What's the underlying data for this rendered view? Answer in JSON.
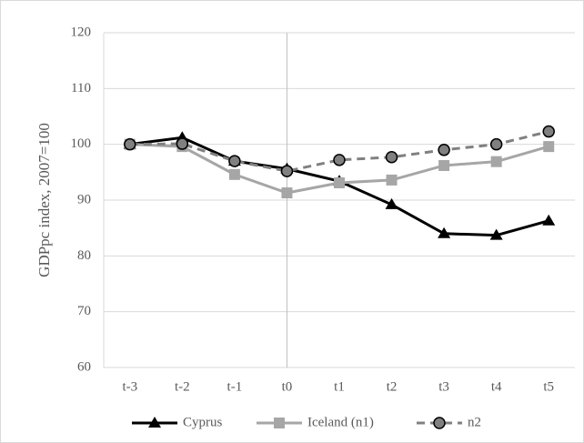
{
  "chart_data": {
    "type": "line",
    "y_label": "GDPpc index, 2007=100",
    "categories": [
      "t-3",
      "t-2",
      "t-1",
      "t0",
      "t1",
      "t2",
      "t3",
      "t4",
      "t5"
    ],
    "series": [
      {
        "name": "Cyprus",
        "color": "#000000",
        "marker": "triangle",
        "dash": false,
        "values": [
          100,
          101.2,
          97.0,
          95.6,
          93.4,
          89.2,
          84.0,
          83.7,
          86.3
        ]
      },
      {
        "name": "Iceland (n1)",
        "color": "#a6a6a6",
        "marker": "square",
        "dash": false,
        "values": [
          100,
          99.6,
          94.6,
          91.3,
          93.1,
          93.6,
          96.2,
          96.9,
          99.6
        ]
      },
      {
        "name": "n2",
        "color": "#808080",
        "marker": "circle",
        "dash": true,
        "values": [
          100,
          100.1,
          97.0,
          95.2,
          97.2,
          97.7,
          99.0,
          100.0,
          102.3
        ]
      }
    ],
    "ylim": [
      60,
      120
    ],
    "yticks": [
      60,
      70,
      80,
      90,
      100,
      110,
      120
    ],
    "grid": true,
    "vline": "t0",
    "legend": "bottom"
  }
}
